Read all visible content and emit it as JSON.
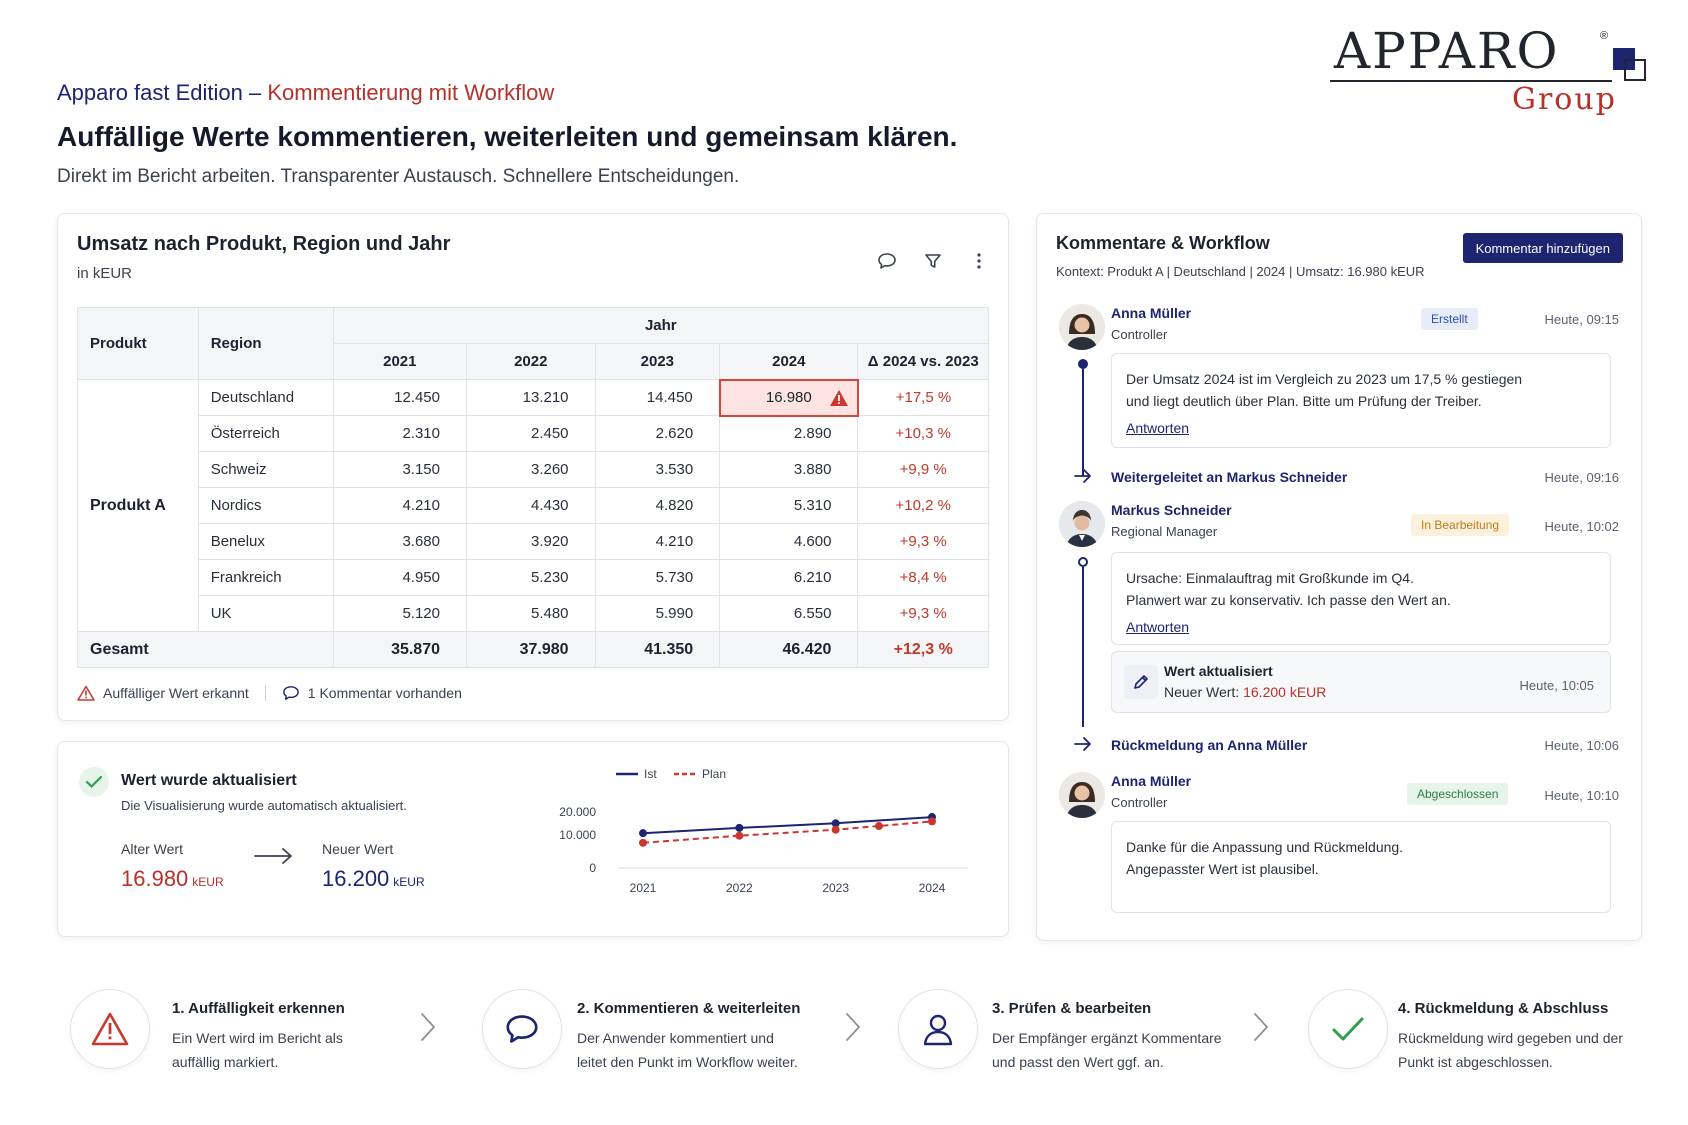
{
  "header": {
    "eyebrow_blue": "Apparo fast Edition –",
    "eyebrow_red": "Kommentierung mit Workflow",
    "headline": "Auffällige Werte kommentieren, weiterleiten und gemeinsam klären.",
    "subline": "Direkt im Bericht arbeiten. Transparenter Austausch. Schnellere Entscheidungen."
  },
  "logo": {
    "word": "APPARO",
    "group": "Group",
    "reg": "®",
    "colors": {
      "blue": "#1d2470",
      "red": "#b8302a"
    }
  },
  "table_card": {
    "title": "Umsatz nach Produkt, Region und Jahr",
    "unit": "in kEUR",
    "tools": [
      "comment-icon",
      "filter-icon",
      "more-vertical-icon"
    ],
    "headers": {
      "produkt": "Produkt",
      "region": "Region",
      "jahr": "Jahr",
      "years": [
        "2021",
        "2022",
        "2023",
        "2024"
      ],
      "delta": "Δ 2024 vs. 2023"
    },
    "produkt": "Produkt A",
    "rows": [
      {
        "region": "Deutschland",
        "values": [
          "12.450",
          "13.210",
          "14.450",
          "16.980"
        ],
        "delta": "+17,5 %"
      },
      {
        "region": "Österreich",
        "values": [
          "2.310",
          "2.450",
          "2.620",
          "2.890"
        ],
        "delta": "+10,3 %"
      },
      {
        "region": "Schweiz",
        "values": [
          "3.150",
          "3.260",
          "3.530",
          "3.880"
        ],
        "delta": "+9,9 %"
      },
      {
        "region": "Nordics",
        "values": [
          "4.210",
          "4.430",
          "4.820",
          "5.310"
        ],
        "delta": "+10,2 %"
      },
      {
        "region": "Benelux",
        "values": [
          "3.680",
          "3.920",
          "4.210",
          "4.600"
        ],
        "delta": "+9,3 %"
      },
      {
        "region": "Frankreich",
        "values": [
          "4.950",
          "5.230",
          "5.730",
          "6.210"
        ],
        "delta": "+8,4 %"
      },
      {
        "region": "UK",
        "values": [
          "5.120",
          "5.480",
          "5.990",
          "6.550"
        ],
        "delta": "+9,3 %"
      }
    ],
    "total": {
      "label": "Gesamt",
      "values": [
        "35.870",
        "37.980",
        "41.350",
        "46.420"
      ],
      "delta": "+12,3 %"
    },
    "legend": {
      "warning": "Auffälliger Wert erkannt",
      "comment": "1 Kommentar vorhanden"
    }
  },
  "update_card": {
    "title": "Wert wurde aktualisiert",
    "subtitle": "Die Visualisierung wurde automatisch aktualisiert.",
    "old_label": "Alter Wert",
    "old_value": "16.980",
    "new_label": "Neuer Wert",
    "new_value": "16.200",
    "unit": "kEUR",
    "colors": {
      "old": "#b8302a",
      "new": "#1d2470"
    }
  },
  "chart_data": {
    "type": "line",
    "x": [
      "2021",
      "2022",
      "2023",
      "2024"
    ],
    "series": [
      {
        "name": "Ist",
        "values": [
          10800,
          13100,
          15100,
          17800
        ],
        "color": "#1d2470",
        "style": "solid"
      },
      {
        "name": "Plan",
        "values": [
          6600,
          9700,
          12300,
          15900
        ],
        "color": "#c8382f",
        "style": "dashed"
      }
    ],
    "plan_extra_point": {
      "x": "2023.45",
      "y": 13900
    },
    "yticks": [
      "0",
      "10.000",
      "20.000"
    ],
    "ylim": [
      0,
      20000
    ],
    "legend_position": "top"
  },
  "comments_card": {
    "title": "Kommentare & Workflow",
    "add_button": "Kommentar hinzufügen",
    "context": "Kontext: Produkt A | Deutschland | 2024 | Umsatz: 16.980 kEUR",
    "c1": {
      "name": "Anna Müller",
      "role": "Controller",
      "status": "Erstellt",
      "time": "Heute, 09:15",
      "line1": "Der Umsatz 2024 ist im Vergleich zu 2023 um 17,5 % gestiegen",
      "line2": "und liegt deutlich über Plan. Bitte um Prüfung der Treiber.",
      "reply": "Antworten"
    },
    "fwd1": {
      "text": "Weitergeleitet an Markus Schneider",
      "time": "Heute, 09:16"
    },
    "c2": {
      "name": "Markus Schneider",
      "role": "Regional Manager",
      "status": "In Bearbeitung",
      "time": "Heute, 10:02",
      "line1": "Ursache: Einmalauftrag mit Großkunde im Q4.",
      "line2": "Planwert war zu konservativ. Ich passe den Wert an.",
      "reply": "Antworten"
    },
    "upd": {
      "title": "Wert aktualisiert",
      "prefix": "Neuer Wert:",
      "value": "16.200 kEUR",
      "time": "Heute, 10:05"
    },
    "fwd2": {
      "text": "Rückmeldung an Anna Müller",
      "time": "Heute, 10:06"
    },
    "c3": {
      "name": "Anna Müller",
      "role": "Controller",
      "status": "Abgeschlossen",
      "time": "Heute, 10:10",
      "line1": "Danke für die Anpassung und Rückmeldung.",
      "line2": "Angepasster Wert ist plausibel."
    }
  },
  "steps": [
    {
      "icon": "warning-icon",
      "title": "1. Auffälligkeit erkennen",
      "l1": "Ein Wert wird im Bericht als",
      "l2": "auffällig markiert."
    },
    {
      "icon": "comment-icon",
      "title": "2. Kommentieren & weiterleiten",
      "l1": "Der Anwender kommentiert und",
      "l2": "leitet den Punkt im Workflow weiter."
    },
    {
      "icon": "user-icon",
      "title": "3. Prüfen & bearbeiten",
      "l1": "Der Empfänger ergänzt Kommentare",
      "l2": "und passt den Wert ggf. an."
    },
    {
      "icon": "check-icon",
      "title": "4. Rückmeldung & Abschluss",
      "l1": "Rückmeldung wird gegeben und der",
      "l2": "Punkt ist abgeschlossen."
    }
  ]
}
